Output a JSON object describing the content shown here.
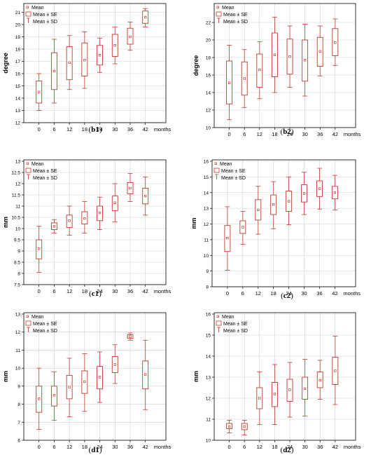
{
  "colors": {
    "box": "#c0392b",
    "frame": "#000000",
    "grid": "#cfcfcf"
  },
  "legend": {
    "mean": "Mean",
    "se": "Mean ± SE",
    "sd": "Mean ± SD"
  },
  "chart_data": [
    {
      "type": "box",
      "id": "b1",
      "label": "b1",
      "ylabel": "degree",
      "x_unit": "months",
      "categories": [
        "0",
        "6",
        "12",
        "18",
        "24",
        "30",
        "36",
        "42"
      ],
      "ylim": [
        12,
        21.6
      ],
      "yticks": [
        12,
        13,
        14,
        15,
        16,
        17,
        18,
        19,
        20,
        21
      ],
      "series": [
        {
          "x": "0",
          "mean": 14.5,
          "se": [
            13.6,
            15.4
          ],
          "sd": [
            13.0,
            16.0
          ]
        },
        {
          "x": "6",
          "mean": 16.2,
          "se": [
            14.7,
            17.7
          ],
          "sd": [
            13.6,
            18.8
          ]
        },
        {
          "x": "12",
          "mean": 16.9,
          "se": [
            15.5,
            18.2
          ],
          "sd": [
            14.7,
            19.1
          ]
        },
        {
          "x": "18",
          "mean": 17.1,
          "se": [
            15.8,
            18.5
          ],
          "sd": [
            14.8,
            19.4
          ]
        },
        {
          "x": "24",
          "mean": 17.5,
          "se": [
            16.7,
            18.3
          ],
          "sd": [
            16.1,
            18.9
          ]
        },
        {
          "x": "30",
          "mean": 18.3,
          "se": [
            17.4,
            19.2
          ],
          "sd": [
            16.8,
            19.8
          ]
        },
        {
          "x": "36",
          "mean": 19.0,
          "se": [
            18.4,
            19.7
          ],
          "sd": [
            17.9,
            20.2
          ]
        },
        {
          "x": "42",
          "mean": 20.6,
          "se": [
            20.1,
            21.1
          ],
          "sd": [
            19.8,
            21.3
          ]
        }
      ]
    },
    {
      "type": "box",
      "id": "b2",
      "label": "b2",
      "ylabel": "degree",
      "x_unit": "months",
      "categories": [
        "0",
        "6",
        "12",
        "18",
        "24",
        "30",
        "36",
        "42"
      ],
      "ylim": [
        10,
        24
      ],
      "yticks": [
        10,
        12,
        14,
        16,
        18,
        20,
        22
      ],
      "series": [
        {
          "x": "0",
          "mean": 15.1,
          "se": [
            12.7,
            17.6
          ],
          "sd": [
            10.9,
            19.4
          ]
        },
        {
          "x": "6",
          "mean": 15.6,
          "se": [
            13.7,
            17.5
          ],
          "sd": [
            12.3,
            18.9
          ]
        },
        {
          "x": "12",
          "mean": 16.6,
          "se": [
            14.6,
            18.4
          ],
          "sd": [
            13.3,
            19.8
          ]
        },
        {
          "x": "18",
          "mean": 18.3,
          "se": [
            15.8,
            20.8
          ],
          "sd": [
            14.0,
            22.6
          ]
        },
        {
          "x": "24",
          "mean": 18.1,
          "se": [
            16.1,
            20.1
          ],
          "sd": [
            14.6,
            21.6
          ]
        },
        {
          "x": "30",
          "mean": 17.7,
          "se": [
            15.3,
            20.0
          ],
          "sd": [
            13.6,
            21.8
          ]
        },
        {
          "x": "36",
          "mean": 18.7,
          "se": [
            17.0,
            20.3
          ],
          "sd": [
            15.9,
            21.6
          ]
        },
        {
          "x": "42",
          "mean": 19.7,
          "se": [
            18.2,
            21.3
          ],
          "sd": [
            17.1,
            22.4
          ]
        }
      ]
    },
    {
      "type": "box",
      "id": "c1",
      "label": "c1",
      "ylabel": "mm",
      "x_unit": "months",
      "categories": [
        "0",
        "6",
        "12",
        "18",
        "24",
        "30",
        "36",
        "42"
      ],
      "ylim": [
        7.5,
        13
      ],
      "yticks": [
        7.5,
        8,
        8.5,
        9,
        9.5,
        10,
        10.5,
        11,
        11.5,
        12,
        12.5,
        13
      ],
      "series": [
        {
          "x": "0",
          "mean": 9.1,
          "se": [
            8.65,
            9.5
          ],
          "sd": [
            8.05,
            10.1
          ]
        },
        {
          "x": "6",
          "mean": 10.1,
          "se": [
            9.95,
            10.25
          ],
          "sd": [
            9.8,
            10.4
          ]
        },
        {
          "x": "12",
          "mean": 10.35,
          "se": [
            10.05,
            10.6
          ],
          "sd": [
            9.7,
            11.0
          ]
        },
        {
          "x": "18",
          "mean": 10.45,
          "se": [
            10.2,
            10.75
          ],
          "sd": [
            9.8,
            11.2
          ]
        },
        {
          "x": "24",
          "mean": 10.7,
          "se": [
            10.35,
            11.0
          ],
          "sd": [
            9.95,
            11.4
          ]
        },
        {
          "x": "30",
          "mean": 11.15,
          "se": [
            10.8,
            11.45
          ],
          "sd": [
            10.3,
            12.0
          ]
        },
        {
          "x": "36",
          "mean": 11.8,
          "se": [
            11.55,
            12.05
          ],
          "sd": [
            11.2,
            12.45
          ]
        },
        {
          "x": "42",
          "mean": 11.45,
          "se": [
            11.1,
            11.8
          ],
          "sd": [
            10.6,
            12.3
          ]
        }
      ]
    },
    {
      "type": "box",
      "id": "c2",
      "label": "c2",
      "ylabel": "mm",
      "x_unit": "months",
      "categories": [
        "0",
        "6",
        "12",
        "18",
        "24",
        "30",
        "36",
        "42"
      ],
      "ylim": [
        8,
        16
      ],
      "yticks": [
        8,
        9,
        10,
        11,
        12,
        13,
        14,
        15,
        16
      ],
      "series": [
        {
          "x": "0",
          "mean": 11.1,
          "se": [
            10.25,
            11.9
          ],
          "sd": [
            9.05,
            13.1
          ]
        },
        {
          "x": "6",
          "mean": 11.8,
          "se": [
            11.4,
            12.2
          ],
          "sd": [
            10.7,
            12.8
          ]
        },
        {
          "x": "12",
          "mean": 12.9,
          "se": [
            12.25,
            13.55
          ],
          "sd": [
            11.35,
            14.4
          ]
        },
        {
          "x": "18",
          "mean": 13.25,
          "se": [
            12.6,
            13.85
          ],
          "sd": [
            11.7,
            14.7
          ]
        },
        {
          "x": "24",
          "mean": 13.45,
          "se": [
            12.8,
            14.1
          ],
          "sd": [
            11.95,
            15.0
          ]
        },
        {
          "x": "30",
          "mean": 13.95,
          "se": [
            13.4,
            14.5
          ],
          "sd": [
            12.6,
            15.3
          ]
        },
        {
          "x": "36",
          "mean": 14.25,
          "se": [
            13.75,
            14.75
          ],
          "sd": [
            12.95,
            15.55
          ]
        },
        {
          "x": "42",
          "mean": 14.0,
          "se": [
            13.6,
            14.4
          ],
          "sd": [
            12.9,
            15.1
          ]
        }
      ]
    },
    {
      "type": "box",
      "id": "d1",
      "label": "d1",
      "ylabel": "mm",
      "x_unit": "months",
      "categories": [
        "0",
        "6",
        "12",
        "18",
        "24",
        "30",
        "36",
        "42"
      ],
      "ylim": [
        6,
        13
      ],
      "yticks": [
        6,
        7,
        8,
        9,
        10,
        11,
        12,
        13
      ],
      "series": [
        {
          "x": "0",
          "mean": 8.3,
          "se": [
            7.55,
            9.0
          ],
          "sd": [
            6.6,
            10.0
          ]
        },
        {
          "x": "6",
          "mean": 8.5,
          "se": [
            7.9,
            9.0
          ],
          "sd": [
            7.1,
            9.8
          ]
        },
        {
          "x": "12",
          "mean": 8.95,
          "se": [
            8.3,
            9.6
          ],
          "sd": [
            7.3,
            10.55
          ]
        },
        {
          "x": "18",
          "mean": 9.25,
          "se": [
            8.6,
            9.85
          ],
          "sd": [
            7.6,
            10.8
          ]
        },
        {
          "x": "24",
          "mean": 9.5,
          "se": [
            8.85,
            10.1
          ],
          "sd": [
            8.1,
            10.9
          ]
        },
        {
          "x": "30",
          "mean": 10.2,
          "se": [
            9.75,
            10.65
          ],
          "sd": [
            9.15,
            11.3
          ]
        },
        {
          "x": "36",
          "mean": 11.75,
          "se": [
            11.65,
            11.85
          ],
          "sd": [
            11.55,
            11.95
          ]
        },
        {
          "x": "42",
          "mean": 9.65,
          "se": [
            8.85,
            10.4
          ],
          "sd": [
            7.7,
            11.55
          ]
        }
      ]
    },
    {
      "type": "box",
      "id": "d2",
      "label": "d2",
      "ylabel": "mm",
      "x_unit": "months",
      "categories": [
        "0",
        "6",
        "12",
        "18",
        "24",
        "30",
        "36",
        "42"
      ],
      "ylim": [
        10,
        16
      ],
      "yticks": [
        10,
        11,
        12,
        13,
        14,
        15,
        16
      ],
      "series": [
        {
          "x": "0",
          "mean": 10.65,
          "se": [
            10.55,
            10.8
          ],
          "sd": [
            10.35,
            10.95
          ]
        },
        {
          "x": "6",
          "mean": 10.65,
          "se": [
            10.5,
            10.8
          ],
          "sd": [
            10.25,
            10.95
          ]
        },
        {
          "x": "12",
          "mean": 12.0,
          "se": [
            11.5,
            12.5
          ],
          "sd": [
            10.75,
            13.25
          ]
        },
        {
          "x": "18",
          "mean": 12.2,
          "se": [
            11.6,
            12.75
          ],
          "sd": [
            10.75,
            13.6
          ]
        },
        {
          "x": "24",
          "mean": 12.4,
          "se": [
            11.85,
            12.9
          ],
          "sd": [
            11.1,
            13.7
          ]
        },
        {
          "x": "30",
          "mean": 12.45,
          "se": [
            11.95,
            13.0
          ],
          "sd": [
            11.15,
            13.85
          ]
        },
        {
          "x": "36",
          "mean": 12.85,
          "se": [
            12.5,
            13.25
          ],
          "sd": [
            11.95,
            13.8
          ]
        },
        {
          "x": "42",
          "mean": 13.3,
          "se": [
            12.65,
            13.95
          ],
          "sd": [
            11.7,
            14.95
          ]
        }
      ]
    }
  ]
}
